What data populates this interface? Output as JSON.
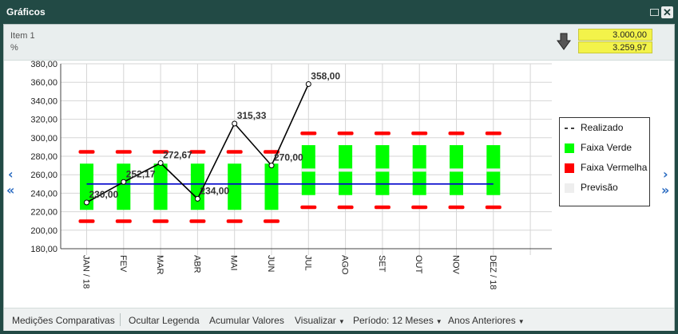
{
  "window": {
    "title": "Gráficos"
  },
  "header": {
    "item_label": "Item 1",
    "unit_label": "%",
    "value_top": "3.000,00",
    "value_bottom": "3.259,97"
  },
  "legend": {
    "items": [
      {
        "label": "Realizado",
        "color": "#000000",
        "icon": "dash-line"
      },
      {
        "label": "Faixa Verde",
        "color": "#00ff00",
        "icon": "square"
      },
      {
        "label": "Faixa Vermelha",
        "color": "#ff0000",
        "icon": "square"
      },
      {
        "label": "Previsão",
        "color": "#eeeeee",
        "icon": "square"
      }
    ]
  },
  "footer": {
    "comparative": "Medições Comparativas",
    "hide_legend": "Ocultar Legenda",
    "accumulate": "Acumular Valores",
    "visualize": "Visualizar",
    "period": "Período: 12 Meses",
    "previous_years": "Anos Anteriores"
  },
  "colors": {
    "green_band": "#00ff00",
    "red_band": "#ff0000",
    "target_line": "#0000cc",
    "realizado": "#000000",
    "accent": "#2a6bc1"
  },
  "chart_data": {
    "type": "line",
    "categories": [
      "JAN / 18",
      "FEV",
      "MAR",
      "ABR",
      "MAI",
      "JUN",
      "JUL",
      "AGO",
      "SET",
      "OUT",
      "NOV",
      "DEZ / 18"
    ],
    "ylim": [
      180,
      380
    ],
    "yticks": [
      "180,00",
      "200,00",
      "220,00",
      "240,00",
      "260,00",
      "280,00",
      "300,00",
      "320,00",
      "340,00",
      "360,00",
      "380,00"
    ],
    "grid": true,
    "legend_position": "right",
    "realizado": {
      "name": "Realizado",
      "values": [
        230.0,
        252.17,
        272.67,
        234.0,
        315.33,
        270.0,
        358.0
      ],
      "labels": [
        "230,00",
        "252,17",
        "272,67",
        "234,00",
        "315,33",
        "270,00",
        "358,00"
      ]
    },
    "faixa_verde": {
      "name": "Faixa Verde",
      "low": [
        222,
        222,
        222,
        222,
        222,
        222,
        238,
        238,
        238,
        238,
        238,
        238
      ],
      "high": [
        272,
        272,
        272,
        272,
        272,
        272,
        292,
        292,
        292,
        292,
        292,
        292
      ]
    },
    "faixa_vermelha": {
      "name": "Faixa Vermelha",
      "low": [
        210,
        210,
        210,
        210,
        210,
        210,
        225,
        225,
        225,
        225,
        225,
        225
      ],
      "high": [
        285,
        285,
        285,
        285,
        285,
        285,
        305,
        305,
        305,
        305,
        305,
        305
      ]
    },
    "previsao": {
      "name": "Previsão",
      "values": [
        null,
        null,
        null,
        null,
        null,
        null,
        265,
        265,
        265,
        265,
        265,
        265
      ]
    },
    "meta": {
      "value": 250
    }
  }
}
